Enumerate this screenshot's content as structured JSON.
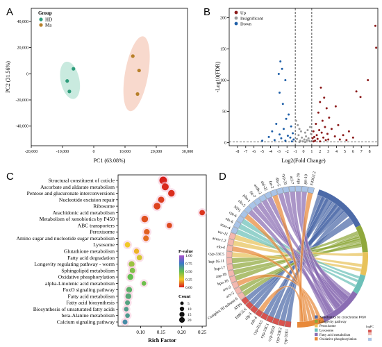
{
  "panels": {
    "a": "A",
    "b": "B",
    "c": "C",
    "d": "D"
  },
  "chart_data": [
    {
      "id": "A",
      "type": "scatter",
      "xlabel": "PC1 (63.08%)",
      "ylabel": "PC2 (31.56%)",
      "xlim": [
        -20000,
        30000
      ],
      "ylim": [
        -55000,
        50000
      ],
      "xticks": [
        "-20,000",
        "-10,000",
        "0",
        "10,000",
        "20,000",
        "30,000"
      ],
      "xtick_values": [
        -20000,
        -10000,
        0,
        10000,
        20000,
        30000
      ],
      "yticks": [
        "-40,000",
        "-20,000",
        "0",
        "20,000",
        "40,000"
      ],
      "ytick_values": [
        -40000,
        -20000,
        0,
        20000,
        40000
      ],
      "legend_title": "Group",
      "colors": {
        "HD": "#2e9c7b",
        "Ma": "#b8802a",
        "HD_ellipse": "#bfe6d9",
        "Ma_ellipse": "#f7d2c4"
      },
      "series": [
        {
          "name": "HD",
          "x": [
            -8500,
            -7800,
            -6500
          ],
          "y": [
            -5500,
            -13500,
            3800
          ]
        },
        {
          "name": "Ma",
          "x": [
            12500,
            14500,
            14000
          ],
          "y": [
            13500,
            2500,
            -15500
          ]
        }
      ],
      "ellipses": [
        {
          "group": "HD",
          "cx": -7600,
          "cy": -5000,
          "rx": 3000,
          "ry": 14500,
          "angle": -12
        },
        {
          "group": "Ma",
          "cx": 13700,
          "cy": 0,
          "rx": 3700,
          "ry": 29000,
          "angle": 10
        }
      ]
    },
    {
      "id": "B",
      "type": "scatter",
      "xlabel": "Log2(Fold  Change)",
      "ylabel": "-Log10(FDR)",
      "xlim": [
        -9,
        9
      ],
      "ylim": [
        -5,
        215
      ],
      "xticks": [
        "-8",
        "-7",
        "-6",
        "-5",
        "-4",
        "-3",
        "-2",
        "-1",
        "0",
        "1",
        "2",
        "3",
        "4",
        "5",
        "6",
        "7",
        "8"
      ],
      "yticks": [
        "0",
        "50",
        "100",
        "150",
        "200"
      ],
      "thresholds": {
        "x": [
          -1,
          1
        ],
        "y": 1.3
      },
      "legend": [
        "Up",
        "Insignificant",
        "Down"
      ],
      "colors": {
        "Up": "#8b1a1a",
        "Insignificant": "#9a9a9a",
        "Down": "#1f5fa8"
      },
      "points_up": [
        [
          8.7,
          187
        ],
        [
          8.8,
          152
        ],
        [
          7.8,
          100
        ],
        [
          6.4,
          82
        ],
        [
          6.9,
          73
        ],
        [
          3.9,
          58
        ],
        [
          4.2,
          28
        ],
        [
          4.8,
          12
        ],
        [
          5.5,
          18
        ],
        [
          2.1,
          88
        ],
        [
          2.5,
          72
        ],
        [
          2.0,
          65
        ],
        [
          2.8,
          55
        ],
        [
          1.8,
          48
        ],
        [
          3.1,
          40
        ],
        [
          2.3,
          35
        ],
        [
          1.5,
          30
        ],
        [
          2.6,
          25
        ],
        [
          3.4,
          22
        ],
        [
          1.9,
          20
        ],
        [
          1.2,
          18
        ],
        [
          2.2,
          16
        ],
        [
          2.9,
          14
        ],
        [
          1.6,
          12
        ],
        [
          3.8,
          10
        ],
        [
          1.3,
          9
        ],
        [
          2.4,
          8
        ],
        [
          1.1,
          7
        ],
        [
          1.7,
          6
        ],
        [
          3.0,
          5
        ],
        [
          4.4,
          5
        ],
        [
          2.7,
          4
        ],
        [
          1.4,
          3
        ],
        [
          1.2,
          2
        ],
        [
          2.0,
          2
        ],
        [
          5.2,
          4
        ],
        [
          6.0,
          8
        ]
      ],
      "points_down": [
        [
          -2.8,
          130
        ],
        [
          -2.6,
          118
        ],
        [
          -3.0,
          110
        ],
        [
          -2.2,
          100
        ],
        [
          -2.9,
          80
        ],
        [
          -2.5,
          62
        ],
        [
          -1.8,
          45
        ],
        [
          -2.1,
          38
        ],
        [
          -3.3,
          30
        ],
        [
          -1.5,
          26
        ],
        [
          -2.4,
          22
        ],
        [
          -3.8,
          18
        ],
        [
          -1.3,
          15
        ],
        [
          -2.9,
          13
        ],
        [
          -1.9,
          11
        ],
        [
          -4.2,
          9
        ],
        [
          -1.6,
          8
        ],
        [
          -2.7,
          7
        ],
        [
          -1.2,
          5
        ],
        [
          -3.5,
          4
        ],
        [
          -2.2,
          3
        ],
        [
          -5.0,
          3
        ],
        [
          -1.4,
          2
        ]
      ],
      "points_ns": [
        [
          -0.9,
          35
        ],
        [
          -0.7,
          28
        ],
        [
          -0.5,
          22
        ],
        [
          -0.3,
          18
        ],
        [
          0.2,
          16
        ],
        [
          0.5,
          20
        ],
        [
          0.8,
          25
        ],
        [
          0.9,
          14
        ],
        [
          -0.6,
          12
        ],
        [
          0.3,
          10
        ],
        [
          -0.2,
          8
        ],
        [
          0.6,
          7
        ],
        [
          -0.8,
          6
        ],
        [
          0.1,
          5
        ],
        [
          0.4,
          4
        ],
        [
          -0.4,
          3
        ],
        [
          0.7,
          3
        ],
        [
          -0.1,
          2
        ],
        [
          0.2,
          1
        ],
        [
          -0.5,
          1
        ]
      ]
    },
    {
      "id": "C",
      "type": "scatter",
      "xlabel": "Rich Factor",
      "xticks": [
        "0.10",
        "0.15",
        "0.20",
        "0.25"
      ],
      "xtick_values": [
        0.1,
        0.15,
        0.2,
        0.25
      ],
      "xlim": [
        0.045,
        0.26
      ],
      "color_title": "P-value",
      "color_ticks": [
        "0.00",
        "0.25",
        "0.50",
        "0.75",
        "1.00"
      ],
      "size_title": "Count",
      "size_ticks": [
        "5",
        "10",
        "15",
        "20"
      ],
      "size_values": [
        5,
        10,
        15,
        20
      ],
      "categories": [
        "Structural constituent of cuticle",
        "Ascorbate and aldarate metabolism",
        "Pentose and glucuronate interconversions",
        "Nucleotide excision repair",
        "Ribosome",
        "Arachidonic acid metabolism",
        "Metabolism of xenobiotics by P450",
        "ABC transporters",
        "Peroxisome",
        "Amino sugar and nucleotide sugar metabolism",
        "Lysosome",
        "Glutathione metabolism",
        "Fatty acid degradation",
        "Longevity regulating pathway - worm",
        "Sphingolipid metabolism",
        "Oxidative phosphorylation",
        "alpha-Linolenic acid metabolism",
        "FoxO signaling pathway",
        "Fatty acid metabolism",
        "Fatty acid biosynthesis",
        "Biosynthesis of unsaturated fatty acids",
        "beta-Alanine metabolism",
        "Calcium signaling pathway"
      ],
      "rich_factor": [
        0.155,
        0.16,
        0.175,
        0.15,
        0.14,
        0.25,
        0.11,
        0.17,
        0.115,
        0.113,
        0.068,
        0.09,
        0.097,
        0.078,
        0.08,
        0.075,
        0.108,
        0.072,
        0.07,
        0.068,
        0.065,
        0.068,
        0.062
      ],
      "count": [
        20,
        16,
        14,
        12,
        15,
        8,
        14,
        8,
        10,
        9,
        8,
        7,
        8,
        10,
        8,
        10,
        5,
        10,
        10,
        6,
        5,
        5,
        6
      ],
      "pvalue": [
        0.01,
        0.02,
        0.03,
        0.05,
        0.06,
        0.04,
        0.08,
        0.07,
        0.1,
        0.12,
        0.25,
        0.22,
        0.3,
        0.4,
        0.45,
        0.5,
        0.48,
        0.55,
        0.58,
        0.6,
        0.62,
        0.63,
        0.68
      ]
    },
    {
      "id": "D",
      "type": "chord",
      "genes": [
        "cyp-33E1",
        "cyp-33E2",
        "cyp-35D1",
        "cyp-33C1",
        "cyp-35A5",
        "mlt-4",
        "clg-3",
        "F08G5.6",
        "ATP6",
        "Complex III subunit 6",
        "acs-3",
        "acs-2",
        "hpo-16",
        "asp-18",
        "hsp-17",
        "hsp-16.11",
        "cyp-33C5",
        "elo-4",
        "acox-1.2",
        "ucr-11",
        "scav-4",
        "elo-6",
        "cpt-6",
        "ND1",
        "elo-5",
        "pha-1",
        "fat-7",
        "acdh-2",
        "daf-22",
        "fat-2",
        "dhs-5",
        "cyp-35",
        "acl-7",
        "nhr-79",
        "gst-10",
        "F43G2.2"
      ],
      "legend": [
        "Xenobiotics by cytochrome P450",
        "Longevity pathway",
        "Peroxisome",
        "Lysosome",
        "Fatty acid metabolism",
        "Oxidative phosphorylation"
      ],
      "colors": [
        "#4c6aa8",
        "#8fa83c",
        "#e8c25a",
        "#6cc0b8",
        "#8a6db3",
        "#e8893a"
      ],
      "logfc_label": "logFC"
    }
  ]
}
